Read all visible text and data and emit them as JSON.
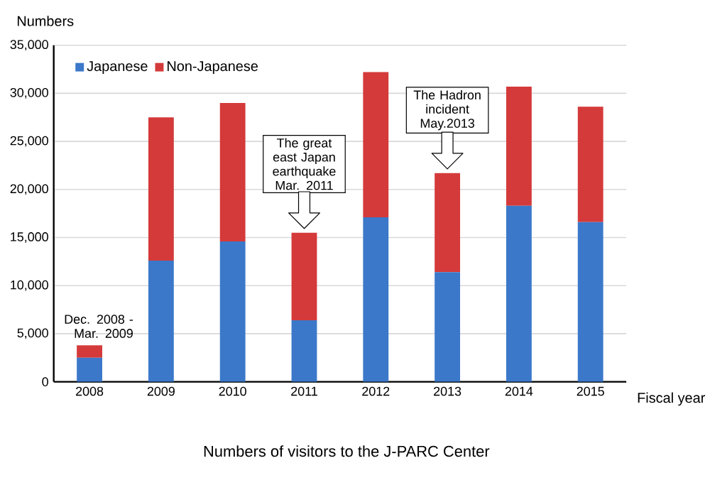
{
  "chart_data": {
    "type": "bar",
    "stacked": true,
    "title": "Numbers of visitors to the J-PARC Center",
    "xlabel": "Fiscal year",
    "ylabel": "Numbers",
    "categories": [
      "2008",
      "2009",
      "2010",
      "2011",
      "2012",
      "2013",
      "2014",
      "2015"
    ],
    "series": [
      {
        "name": "Japanese",
        "color": "#3b78c9",
        "values": [
          2500,
          12600,
          14600,
          6400,
          17100,
          11400,
          18300,
          16600
        ]
      },
      {
        "name": "Non-Japanese",
        "color": "#d43a3a",
        "values": [
          1300,
          14900,
          14400,
          9100,
          15100,
          10300,
          12400,
          12000
        ]
      }
    ],
    "ylim": [
      0,
      35000
    ],
    "yticks": [
      0,
      {
        "value": 5000,
        "label": "5,000"
      },
      {
        "value": 10000,
        "label": "10,000"
      },
      {
        "value": 15000,
        "label": "15,000"
      },
      {
        "value": 20000,
        "label": "20,000"
      },
      {
        "value": 25000,
        "label": "25,000"
      },
      {
        "value": 30000,
        "label": "30,000"
      },
      {
        "value": 35000,
        "label": "35,000"
      }
    ],
    "grid": "y",
    "legend": "top left",
    "annotations": [
      "Dec. 2008 - Mar. 2009",
      "The great east Japan earthquake Mar. 2011",
      "The Hadron incident May.2013"
    ]
  }
}
